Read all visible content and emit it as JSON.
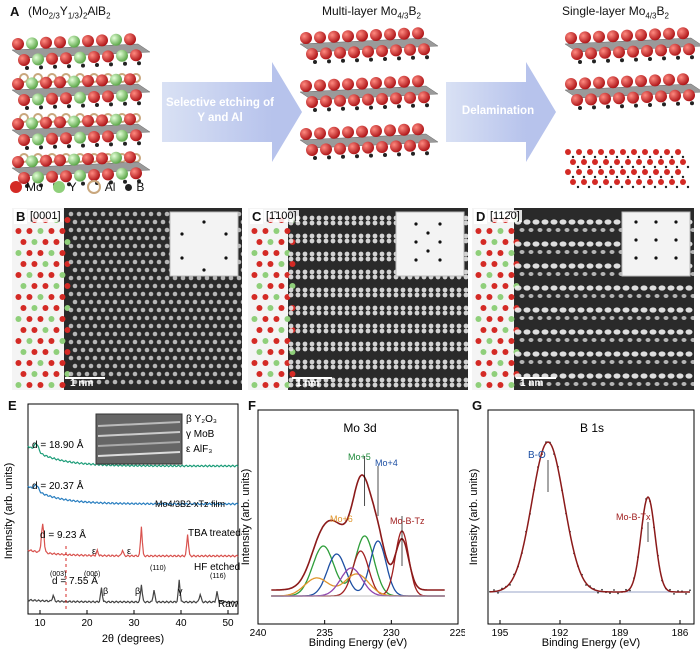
{
  "panelA": {
    "label": "A",
    "formula": "(Mo",
    "formula_sub1": "2/3",
    "formula_mid": "Y",
    "formula_sub2": "1/3",
    "formula_end": ")",
    "formula_sub3": "2",
    "formula_tail": "AlB",
    "formula_sub4": "2",
    "multi_title": "Multi-layer Mo",
    "multi_sub": "4/3",
    "multi_tail": "B",
    "multi_sub2": "2",
    "single_title": "Single-layer Mo",
    "single_sub": "4/3",
    "single_tail": "B",
    "single_sub2": "2",
    "arrow1_text": "Selective etching of Y and Al",
    "arrow2_text": "Delamination",
    "legend": [
      {
        "label": "Mo",
        "color": "#d42a25"
      },
      {
        "label": "Y",
        "color": "#8fcf7a"
      },
      {
        "label": "Al",
        "color": "#c9a77d"
      },
      {
        "label": "B",
        "color": "#222222"
      }
    ]
  },
  "panelB": {
    "label": "B",
    "axis": "[0001]",
    "scale": "1 nm"
  },
  "panelC": {
    "label": "C",
    "axis": "[1̄100]",
    "scale": "1 nm"
  },
  "panelD": {
    "label": "D",
    "axis": "[112̄0]",
    "scale": "1 nm"
  },
  "panelE": {
    "label": "E",
    "ylabel": "Intensity (arb. units)",
    "xlabel": "2θ (degrees)",
    "xticks": [
      "10",
      "20",
      "30",
      "40",
      "50"
    ],
    "legend_beta": "β  Y₂O₃",
    "legend_gamma": "γ  MoB",
    "legend_eps": "ε  AlF₃",
    "d1": "d = 18.90 Å",
    "d2": "d = 20.37 Å",
    "d3": "d = 9.23 Å",
    "d4": "d = 7.55 Å",
    "film_label": "Mo4/3B2-xTz film",
    "tba_label": "TBA treated",
    "hf_label": "HF etched",
    "raw_label": "Raw",
    "peak_labels": [
      "(003)",
      "(006)",
      "(110)",
      "(116)",
      "β",
      "β",
      "γ",
      "ε",
      "ε"
    ]
  },
  "panelF": {
    "label": "F",
    "title": "Mo 3d",
    "ylabel": "Intensity (arb. units)",
    "xlabel": "Binding Energy (eV)",
    "xticks": [
      "240",
      "235",
      "230",
      "225"
    ],
    "mo5": "Mo+5",
    "mo4": "Mo+4",
    "mo6": "Mo+6",
    "mobt": "Mo-B-Tz"
  },
  "panelG": {
    "label": "G",
    "title": "B 1s",
    "ylabel": "Intensity (arb. units)",
    "xlabel": "Binding Energy (eV)",
    "xticks": [
      "195",
      "192",
      "189",
      "186"
    ],
    "bo": "B-O",
    "mobt": "Mo-B-Tx"
  },
  "colors": {
    "mo": "#d42a25",
    "y": "#8fcf7a",
    "al": "#c9a77d",
    "b": "#222222",
    "arrow": "#b7c3ec",
    "xps_envelope": "#8b1a1a",
    "xrd_green": "#1f9e7a",
    "xrd_blue": "#2a7fc0",
    "xrd_red": "#d9534f",
    "xrd_black": "#444444"
  }
}
